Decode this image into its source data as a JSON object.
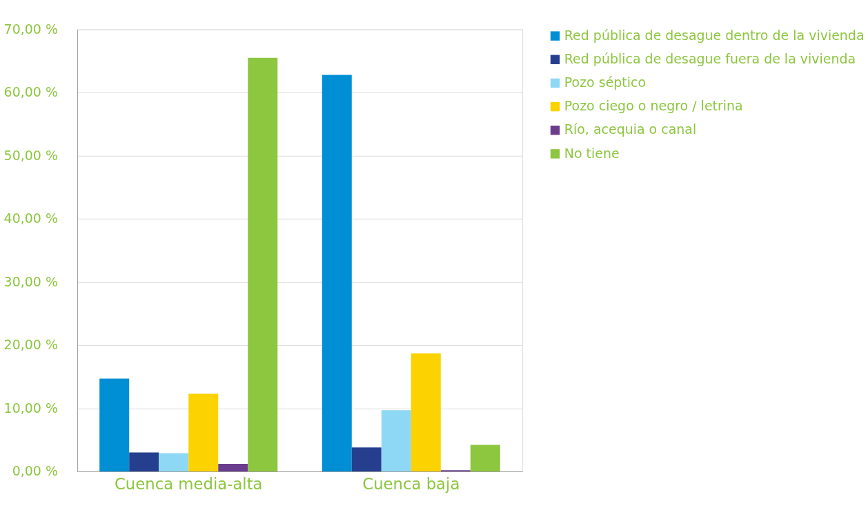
{
  "chart_data": {
    "type": "bar",
    "categories": [
      "Cuenca media-alta",
      "Cuenca baja"
    ],
    "series": [
      {
        "name": "Red pública de desague dentro de la vivienda",
        "color": "#008fd5",
        "values": [
          14.7,
          62.8
        ]
      },
      {
        "name": "Red pública de desague fuera de la vivienda",
        "color": "#253f8e",
        "values": [
          3.0,
          3.8
        ]
      },
      {
        "name": "Pozo séptico",
        "color": "#8fd8f5",
        "values": [
          2.9,
          9.7
        ]
      },
      {
        "name": "Pozo ciego o negro / letrina",
        "color": "#fcd200",
        "values": [
          12.3,
          18.7
        ]
      },
      {
        "name": "Río, acequia o canal",
        "color": "#6a3d8f",
        "values": [
          1.2,
          0.2
        ]
      },
      {
        "name": "No tiene",
        "color": "#8dc63f",
        "values": [
          65.5,
          4.2
        ]
      }
    ],
    "ylim": [
      0,
      70
    ],
    "yticks": [
      {
        "value": 0,
        "label": "0,00 %"
      },
      {
        "value": 10,
        "label": "10,00 %"
      },
      {
        "value": 20,
        "label": "20,00 %"
      },
      {
        "value": 30,
        "label": "30,00 %"
      },
      {
        "value": 40,
        "label": "40,00 %"
      },
      {
        "value": 50,
        "label": "50,00 %"
      },
      {
        "value": 60,
        "label": "60,00 %"
      },
      {
        "value": 70,
        "label": "70,00 %"
      }
    ],
    "grid": "y",
    "legend": "top right"
  }
}
